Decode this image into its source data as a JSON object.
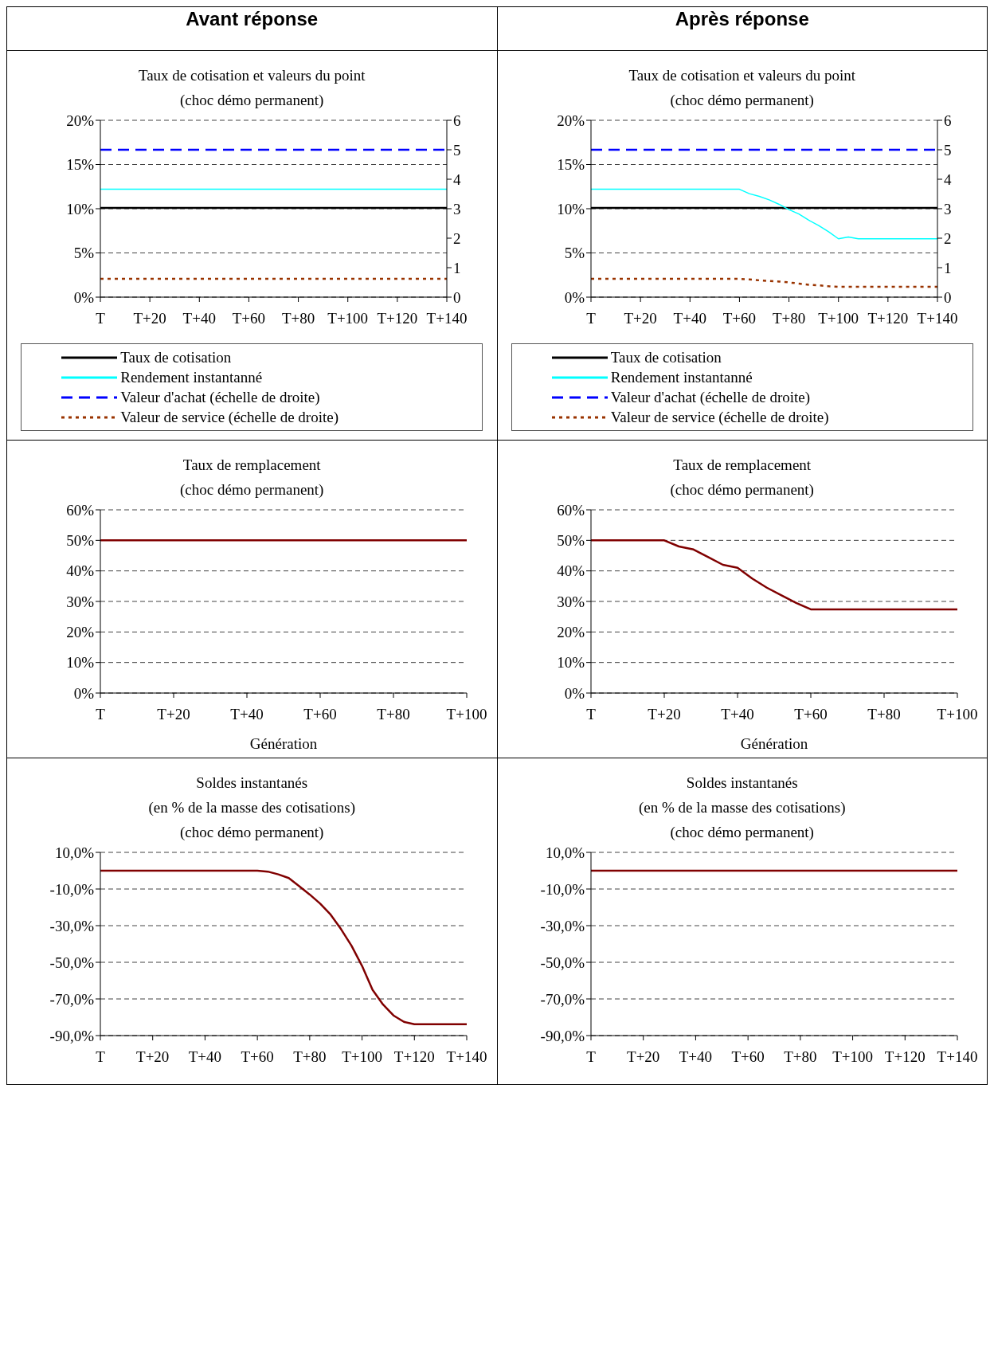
{
  "chart_data": [
    {
      "type": "line",
      "title": "Taux de cotisation et valeurs du point",
      "subtitle": "(choc démo permanent)",
      "annotations": [
        "Avant réponse"
      ],
      "categories": [
        "T",
        null,
        null,
        null,
        null,
        "T+20",
        null,
        null,
        null,
        null,
        "T+40",
        null,
        null,
        null,
        null,
        "T+60",
        null,
        null,
        null,
        null,
        "T+80",
        null,
        null,
        null,
        null,
        "T+100",
        null,
        null,
        null,
        null,
        "T+120",
        null,
        null,
        null,
        null,
        "T+140"
      ],
      "ylim": [
        0,
        20
      ],
      "yticks": [
        {
          "value": 0,
          "label": "0%"
        },
        {
          "value": 5,
          "label": "5%"
        },
        {
          "value": 10,
          "label": "10%"
        },
        {
          "value": 15,
          "label": "15%"
        },
        {
          "value": 20,
          "label": "20%"
        }
      ],
      "y2lim": [
        0,
        6
      ],
      "y2ticks": [
        0,
        1,
        2,
        3,
        4,
        5,
        6
      ],
      "grid": "y",
      "legend": "bottom",
      "marker": "none",
      "series": [
        {
          "name": "Taux de cotisation",
          "color": "#000000",
          "line_style": "solid",
          "values": [
            10.1,
            10.1,
            10.1,
            10.1,
            10.1,
            10.1,
            10.1,
            10.1,
            10.1,
            10.1,
            10.1,
            10.1,
            10.1,
            10.1,
            10.1,
            10.1,
            10.1,
            10.1,
            10.1,
            10.1,
            10.1,
            10.1,
            10.1,
            10.1,
            10.1,
            10.1,
            10.1,
            10.1,
            10.1,
            10.1,
            10.1,
            10.1,
            10.1,
            10.1,
            10.1,
            10.1
          ]
        },
        {
          "name": "Rendement instantanné",
          "color": "#00ffff",
          "line_style": "solid",
          "values": [
            12.2,
            12.2,
            12.2,
            12.2,
            12.2,
            12.2,
            12.2,
            12.2,
            12.2,
            12.2,
            12.2,
            12.2,
            12.2,
            12.2,
            12.2,
            12.2,
            12.2,
            12.2,
            12.2,
            12.2,
            12.2,
            12.2,
            12.2,
            12.2,
            12.2,
            12.2,
            12.2,
            12.2,
            12.2,
            12.2,
            12.2,
            12.2,
            12.2,
            12.2,
            12.2,
            12.2
          ]
        },
        {
          "name": "Valeur d'achat (échelle de droite)",
          "color": "#0000ff",
          "line_style": "dashed",
          "axis": "y2",
          "values": [
            5,
            5,
            5,
            5,
            5,
            5,
            5,
            5,
            5,
            5,
            5,
            5,
            5,
            5,
            5,
            5,
            5,
            5,
            5,
            5,
            5,
            5,
            5,
            5,
            5,
            5,
            5,
            5,
            5,
            5,
            5,
            5,
            5,
            5,
            5,
            5
          ]
        },
        {
          "name": "Valeur de service (échelle de droite)",
          "color": "#993300",
          "line_style": "dotted",
          "axis": "y2",
          "values": [
            0.62,
            0.62,
            0.62,
            0.62,
            0.62,
            0.62,
            0.62,
            0.62,
            0.62,
            0.62,
            0.62,
            0.62,
            0.62,
            0.62,
            0.62,
            0.62,
            0.62,
            0.62,
            0.62,
            0.62,
            0.62,
            0.62,
            0.62,
            0.62,
            0.62,
            0.62,
            0.62,
            0.62,
            0.62,
            0.62,
            0.62,
            0.62,
            0.62,
            0.62,
            0.62,
            0.62
          ]
        }
      ]
    },
    {
      "type": "line",
      "title": "Taux de cotisation et valeurs du point",
      "subtitle": "(choc démo permanent)",
      "annotations": [
        "Après réponse"
      ],
      "categories": [
        "T",
        null,
        null,
        null,
        null,
        "T+20",
        null,
        null,
        null,
        null,
        "T+40",
        null,
        null,
        null,
        null,
        "T+60",
        null,
        null,
        null,
        null,
        "T+80",
        null,
        null,
        null,
        null,
        "T+100",
        null,
        null,
        null,
        null,
        "T+120",
        null,
        null,
        null,
        null,
        "T+140"
      ],
      "ylim": [
        0,
        20
      ],
      "yticks": [
        {
          "value": 0,
          "label": "0%"
        },
        {
          "value": 5,
          "label": "5%"
        },
        {
          "value": 10,
          "label": "10%"
        },
        {
          "value": 15,
          "label": "15%"
        },
        {
          "value": 20,
          "label": "20%"
        }
      ],
      "y2lim": [
        0,
        6
      ],
      "y2ticks": [
        0,
        1,
        2,
        3,
        4,
        5,
        6
      ],
      "grid": "y",
      "legend": "bottom",
      "marker": "none",
      "series": [
        {
          "name": "Taux de cotisation",
          "color": "#000000",
          "line_style": "solid",
          "values": [
            10.1,
            10.1,
            10.1,
            10.1,
            10.1,
            10.1,
            10.1,
            10.1,
            10.1,
            10.1,
            10.1,
            10.1,
            10.1,
            10.1,
            10.1,
            10.1,
            10.1,
            10.1,
            10.1,
            10.1,
            10.1,
            10.1,
            10.1,
            10.1,
            10.1,
            10.1,
            10.1,
            10.1,
            10.1,
            10.1,
            10.1,
            10.1,
            10.1,
            10.1,
            10.1,
            10.1
          ]
        },
        {
          "name": "Rendement instantanné",
          "color": "#00ffff",
          "line_style": "solid",
          "values": [
            12.2,
            12.2,
            12.2,
            12.2,
            12.2,
            12.2,
            12.2,
            12.2,
            12.2,
            12.2,
            12.2,
            12.2,
            12.2,
            12.2,
            12.2,
            12.2,
            11.7,
            11.4,
            11.0,
            10.5,
            9.9,
            9.4,
            8.7,
            8.1,
            7.4,
            6.6,
            6.8,
            6.6,
            6.6,
            6.6,
            6.6,
            6.6,
            6.6,
            6.6,
            6.6,
            6.6
          ]
        },
        {
          "name": "Valeur d'achat (échelle de droite)",
          "color": "#0000ff",
          "line_style": "dashed",
          "axis": "y2",
          "values": [
            5,
            5,
            5,
            5,
            5,
            5,
            5,
            5,
            5,
            5,
            5,
            5,
            5,
            5,
            5,
            5,
            5,
            5,
            5,
            5,
            5,
            5,
            5,
            5,
            5,
            5,
            5,
            5,
            5,
            5,
            5,
            5,
            5,
            5,
            5,
            5
          ]
        },
        {
          "name": "Valeur de service (échelle de droite)",
          "color": "#993300",
          "line_style": "dotted",
          "axis": "y2",
          "values": [
            0.62,
            0.62,
            0.62,
            0.62,
            0.62,
            0.62,
            0.62,
            0.62,
            0.62,
            0.62,
            0.62,
            0.62,
            0.62,
            0.62,
            0.62,
            0.62,
            0.6,
            0.57,
            0.55,
            0.53,
            0.5,
            0.46,
            0.42,
            0.4,
            0.37,
            0.35,
            0.35,
            0.35,
            0.35,
            0.35,
            0.35,
            0.35,
            0.35,
            0.35,
            0.35,
            0.35
          ]
        }
      ]
    },
    {
      "type": "line",
      "title": "Taux de remplacement",
      "subtitle": "(choc démo permanent)",
      "xlabel": "Génération",
      "categories": [
        "T",
        null,
        null,
        null,
        null,
        "T+20",
        null,
        null,
        null,
        null,
        "T+40",
        null,
        null,
        null,
        null,
        "T+60",
        null,
        null,
        null,
        null,
        "T+80",
        null,
        null,
        null,
        null,
        "T+100"
      ],
      "ylim": [
        0,
        60
      ],
      "yticks": [
        {
          "value": 0,
          "label": "0%"
        },
        {
          "value": 10,
          "label": "10%"
        },
        {
          "value": 20,
          "label": "20%"
        },
        {
          "value": 30,
          "label": "30%"
        },
        {
          "value": 40,
          "label": "40%"
        },
        {
          "value": 50,
          "label": "50%"
        },
        {
          "value": 60,
          "label": "60%"
        }
      ],
      "grid": "y",
      "marker": "none",
      "series": [
        {
          "color": "#800000",
          "line_style": "solid",
          "values": [
            50,
            50,
            50,
            50,
            50,
            50,
            50,
            50,
            50,
            50,
            50,
            50,
            50,
            50,
            50,
            50,
            50,
            50,
            50,
            50,
            50,
            50,
            50,
            50,
            50,
            50
          ]
        }
      ]
    },
    {
      "type": "line",
      "title": "Taux de remplacement",
      "subtitle": "(choc démo permanent)",
      "xlabel": "Génération",
      "categories": [
        "T",
        null,
        null,
        null,
        null,
        "T+20",
        null,
        null,
        null,
        null,
        "T+40",
        null,
        null,
        null,
        null,
        "T+60",
        null,
        null,
        null,
        null,
        "T+80",
        null,
        null,
        null,
        null,
        "T+100"
      ],
      "ylim": [
        0,
        60
      ],
      "yticks": [
        {
          "value": 0,
          "label": "0%"
        },
        {
          "value": 10,
          "label": "10%"
        },
        {
          "value": 20,
          "label": "20%"
        },
        {
          "value": 30,
          "label": "30%"
        },
        {
          "value": 40,
          "label": "40%"
        },
        {
          "value": 50,
          "label": "50%"
        },
        {
          "value": 60,
          "label": "60%"
        }
      ],
      "grid": "y",
      "marker": "none",
      "series": [
        {
          "color": "#800000",
          "line_style": "solid",
          "values": [
            50,
            50,
            50,
            50,
            50,
            50,
            48,
            47,
            44.5,
            42,
            41,
            37.5,
            34.5,
            32,
            29.5,
            27.4,
            27.4,
            27.4,
            27.4,
            27.4,
            27.4,
            27.4,
            27.4,
            27.4,
            27.4,
            27.4
          ]
        }
      ]
    },
    {
      "type": "line",
      "title": "Soldes instantanés",
      "subtitle": "(en % de la masse des cotisations)\n(choc démo permanent)",
      "categories": [
        "T",
        null,
        null,
        null,
        null,
        "T+20",
        null,
        null,
        null,
        null,
        "T+40",
        null,
        null,
        null,
        null,
        "T+60",
        null,
        null,
        null,
        null,
        "T+80",
        null,
        null,
        null,
        null,
        "T+100",
        null,
        null,
        null,
        null,
        "T+120",
        null,
        null,
        null,
        null,
        "T+140"
      ],
      "ylim": [
        -90,
        10
      ],
      "yticks": [
        {
          "value": -90,
          "label": "-90,0%"
        },
        {
          "value": -70,
          "label": "-70,0%"
        },
        {
          "value": -50,
          "label": "-50,0%"
        },
        {
          "value": -30,
          "label": "-30,0%"
        },
        {
          "value": -10,
          "label": "-10,0%"
        },
        {
          "value": 10,
          "label": "10,0%"
        }
      ],
      "grid": "y",
      "marker": "none",
      "series": [
        {
          "color": "#800000",
          "line_style": "solid",
          "values": [
            0,
            0,
            0,
            0,
            0,
            0,
            0,
            0,
            0,
            0,
            0,
            0,
            0,
            0,
            0,
            0,
            -0.5,
            -2,
            -4,
            -8.5,
            -13,
            -18,
            -24,
            -32,
            -41,
            -52,
            -65,
            -73,
            -79,
            -82.5,
            -83.8,
            -83.8,
            -83.8,
            -83.8,
            -83.8,
            -83.8
          ]
        }
      ]
    },
    {
      "type": "line",
      "title": "Soldes instantanés",
      "subtitle": "(en % de la masse des cotisations)\n(choc démo permanent)",
      "categories": [
        "T",
        null,
        null,
        null,
        null,
        "T+20",
        null,
        null,
        null,
        null,
        "T+40",
        null,
        null,
        null,
        null,
        "T+60",
        null,
        null,
        null,
        null,
        "T+80",
        null,
        null,
        null,
        null,
        "T+100",
        null,
        null,
        null,
        null,
        "T+120",
        null,
        null,
        null,
        null,
        "T+140"
      ],
      "ylim": [
        -90,
        10
      ],
      "yticks": [
        {
          "value": -90,
          "label": "-90,0%"
        },
        {
          "value": -70,
          "label": "-70,0%"
        },
        {
          "value": -50,
          "label": "-50,0%"
        },
        {
          "value": -30,
          "label": "-30,0%"
        },
        {
          "value": -10,
          "label": "-10,0%"
        },
        {
          "value": 10,
          "label": "10,0%"
        }
      ],
      "grid": "y",
      "marker": "none",
      "series": [
        {
          "color": "#800000",
          "line_style": "solid",
          "values": [
            0,
            0,
            0,
            0,
            0,
            0,
            0,
            0,
            0,
            0,
            0,
            0,
            0,
            0,
            0,
            0,
            0,
            0,
            0,
            0,
            0,
            0,
            0,
            0,
            0,
            0,
            0,
            0,
            0,
            0,
            0,
            0,
            0,
            0,
            0,
            0
          ]
        }
      ]
    }
  ]
}
